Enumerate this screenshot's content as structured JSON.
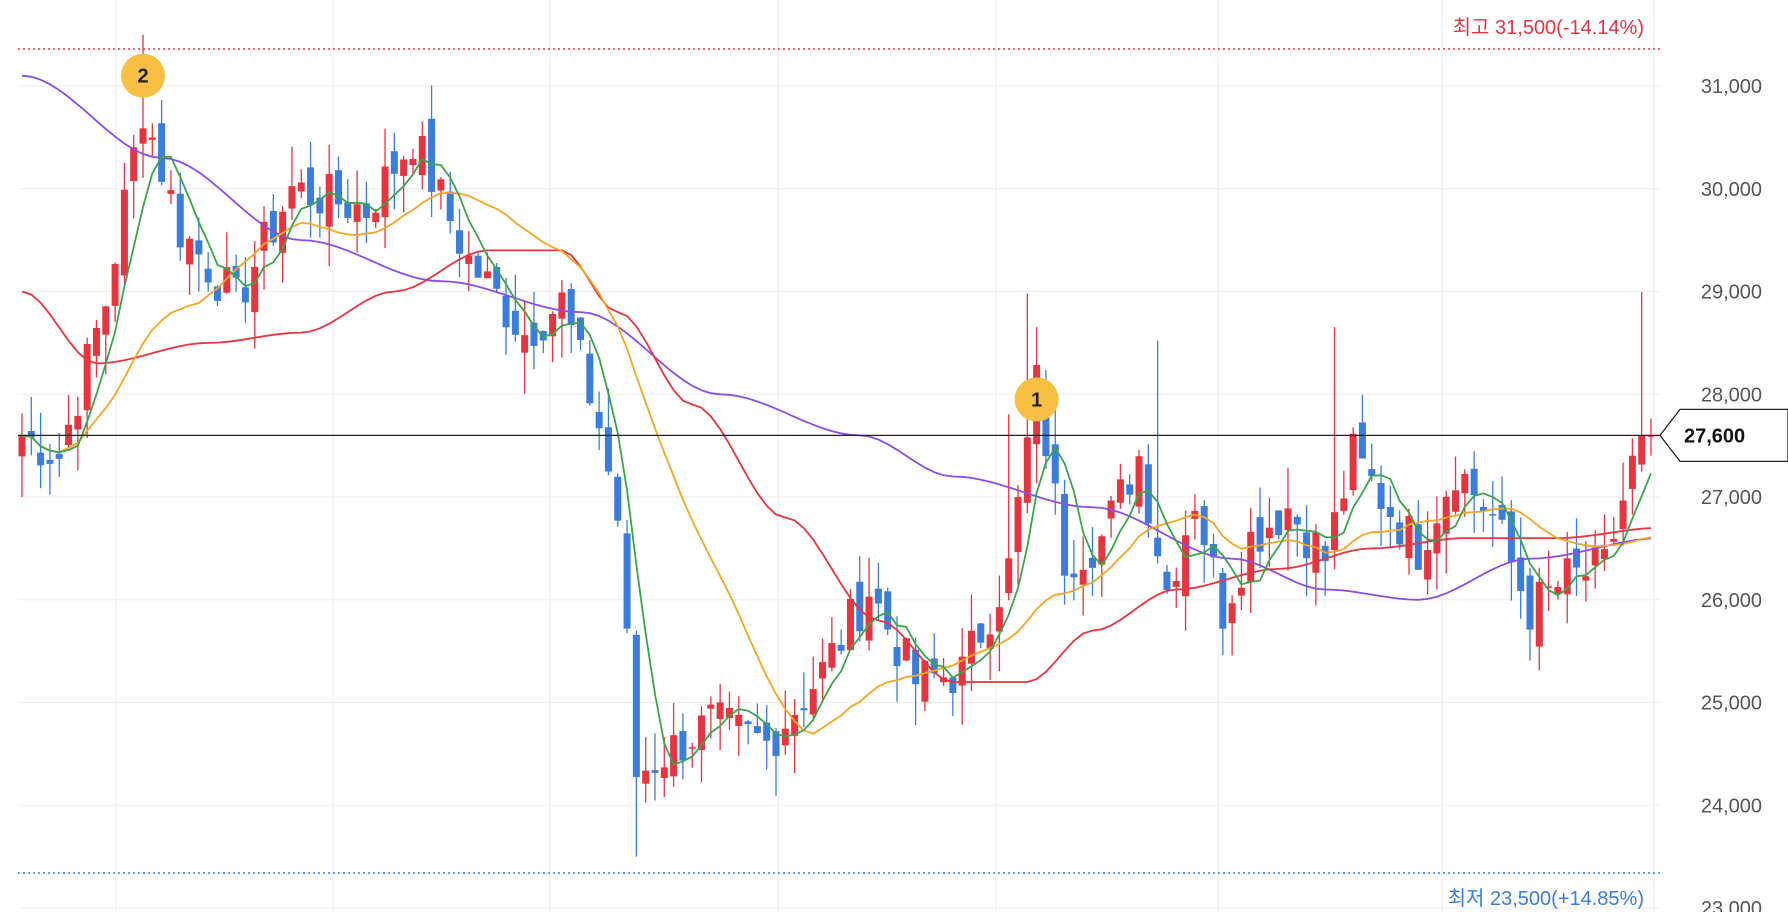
{
  "chart_data": {
    "type": "candlestick",
    "y_axis": {
      "ticks": [
        23000,
        24000,
        25000,
        26000,
        27000,
        28000,
        29000,
        30000,
        31000
      ],
      "tick_labels": [
        "23,000",
        "24,000",
        "25,000",
        "26,000",
        "27,000",
        "28,000",
        "29,000",
        "30,000",
        "31,000"
      ],
      "range": [
        23000,
        31800
      ],
      "position": "right"
    },
    "grid": true,
    "candle_colors": {
      "up": "#e8343f",
      "down": "#3b7ddd"
    },
    "high_marker": {
      "label": "최고 31,500(-14.14%)",
      "value": 31500,
      "color": "#e8343f"
    },
    "low_marker": {
      "label": "최저 23,500(+14.85%)",
      "value": 23500,
      "color": "#3b7ddd"
    },
    "current_price": {
      "value": 27600,
      "label": "27,600"
    },
    "annotations": [
      {
        "label": "2",
        "price": 31100,
        "approx_index": 13
      },
      {
        "label": "1",
        "price": 27950,
        "approx_index": 109
      }
    ],
    "candles_note": "approx. 175 daily candles, values read approximately",
    "key_points": [
      {
        "i": 0,
        "c": 27600
      },
      {
        "i": 4,
        "c": 27400
      },
      {
        "i": 9,
        "c": 28900
      },
      {
        "i": 13,
        "c": 30800
      },
      {
        "i": 17,
        "c": 29600
      },
      {
        "i": 23,
        "c": 28900
      },
      {
        "i": 29,
        "c": 30000
      },
      {
        "i": 37,
        "c": 29800
      },
      {
        "i": 42,
        "c": 30500
      },
      {
        "i": 48,
        "c": 29300
      },
      {
        "i": 54,
        "c": 28600
      },
      {
        "i": 58,
        "c": 28900
      },
      {
        "i": 62,
        "c": 27700
      },
      {
        "i": 64,
        "c": 26800
      },
      {
        "i": 66,
        "c": 24300
      },
      {
        "i": 69,
        "c": 24500
      },
      {
        "i": 74,
        "c": 24800
      },
      {
        "i": 80,
        "c": 24600
      },
      {
        "i": 86,
        "c": 25300
      },
      {
        "i": 91,
        "c": 26100
      },
      {
        "i": 96,
        "c": 25200
      },
      {
        "i": 101,
        "c": 25300
      },
      {
        "i": 106,
        "c": 26300
      },
      {
        "i": 109,
        "c": 28100
      },
      {
        "i": 112,
        "c": 26400
      },
      {
        "i": 116,
        "c": 26600
      },
      {
        "i": 120,
        "c": 27400
      },
      {
        "i": 123,
        "c": 26100
      },
      {
        "i": 126,
        "c": 27000
      },
      {
        "i": 129,
        "c": 25900
      },
      {
        "i": 132,
        "c": 26600
      },
      {
        "i": 136,
        "c": 26900
      },
      {
        "i": 140,
        "c": 26400
      },
      {
        "i": 143,
        "c": 27400
      },
      {
        "i": 146,
        "c": 27000
      },
      {
        "i": 150,
        "c": 26500
      },
      {
        "i": 154,
        "c": 27300
      },
      {
        "i": 158,
        "c": 26800
      },
      {
        "i": 162,
        "c": 25900
      },
      {
        "i": 166,
        "c": 26200
      },
      {
        "i": 170,
        "c": 26300
      },
      {
        "i": 173,
        "c": 27300
      },
      {
        "i": 175,
        "c": 27600
      }
    ],
    "moving_averages": [
      {
        "color": "#3aa54a",
        "period": 5
      },
      {
        "color": "#f5a623",
        "period": 20
      },
      {
        "color": "#e8343f",
        "period": 60
      },
      {
        "color": "#8b4ce8",
        "period": 120
      }
    ],
    "ma_long_points": [
      {
        "i": 0,
        "v": 31100
      },
      {
        "i": 15,
        "v": 30300
      },
      {
        "i": 30,
        "v": 29500
      },
      {
        "i": 45,
        "v": 29100
      },
      {
        "i": 60,
        "v": 28800
      },
      {
        "i": 75,
        "v": 28000
      },
      {
        "i": 90,
        "v": 27600
      },
      {
        "i": 100,
        "v": 27200
      },
      {
        "i": 115,
        "v": 26900
      },
      {
        "i": 130,
        "v": 26400
      },
      {
        "i": 140,
        "v": 26100
      },
      {
        "i": 150,
        "v": 26000
      },
      {
        "i": 162,
        "v": 26400
      },
      {
        "i": 176,
        "v": 26600
      }
    ],
    "ma_60_points": [
      {
        "i": 0,
        "v": 29000
      },
      {
        "i": 8,
        "v": 28300
      },
      {
        "i": 20,
        "v": 28500
      },
      {
        "i": 30,
        "v": 28600
      },
      {
        "i": 40,
        "v": 29000
      },
      {
        "i": 50,
        "v": 29400
      },
      {
        "i": 58,
        "v": 29400
      },
      {
        "i": 64,
        "v": 28800
      },
      {
        "i": 72,
        "v": 27900
      },
      {
        "i": 82,
        "v": 26800
      },
      {
        "i": 92,
        "v": 25800
      },
      {
        "i": 100,
        "v": 25200
      },
      {
        "i": 108,
        "v": 25200
      },
      {
        "i": 115,
        "v": 25700
      },
      {
        "i": 124,
        "v": 26100
      },
      {
        "i": 135,
        "v": 26300
      },
      {
        "i": 145,
        "v": 26500
      },
      {
        "i": 155,
        "v": 26600
      },
      {
        "i": 165,
        "v": 26600
      },
      {
        "i": 176,
        "v": 26700
      }
    ]
  }
}
